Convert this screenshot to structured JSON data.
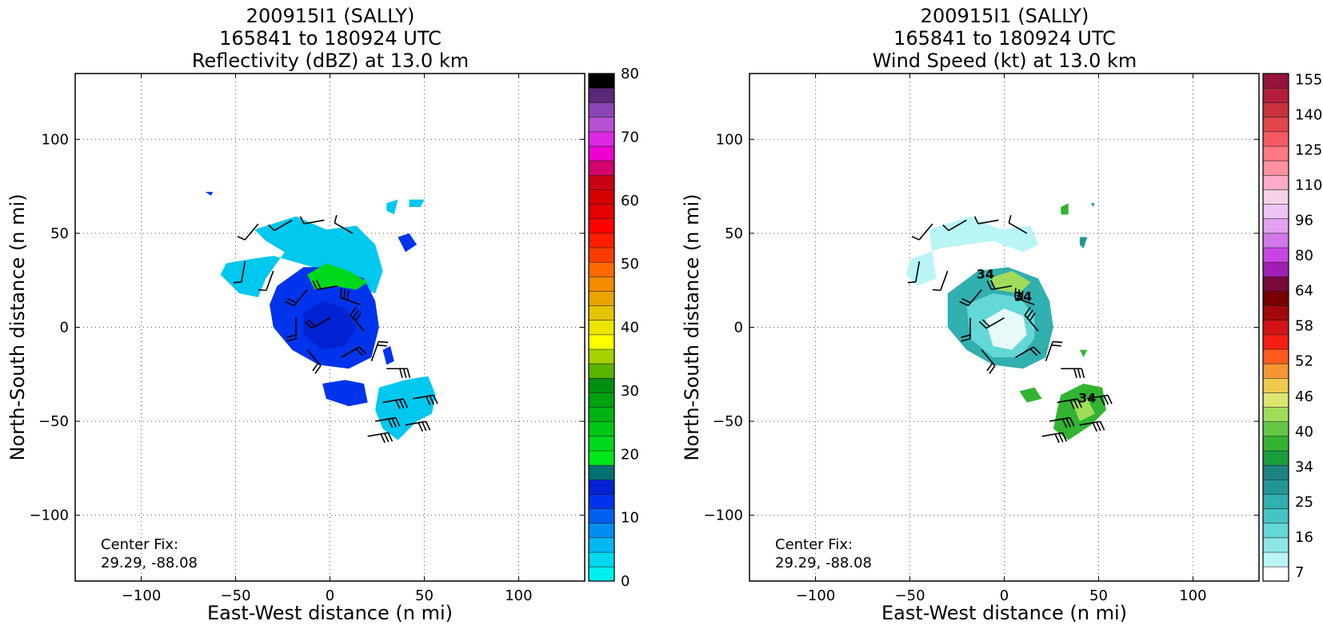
{
  "chart_data": [
    {
      "type": "heatmap",
      "title": [
        "200915I1 (SALLY)",
        "165841 to 180924 UTC",
        "Reflectivity (dBZ) at 13.0 km"
      ],
      "xlabel": "East-West distance (n mi)",
      "ylabel": "North-South distance (n mi)",
      "xlim": [
        -135,
        135
      ],
      "ylim": [
        -135,
        135
      ],
      "xticks": [
        -100,
        -50,
        0,
        50,
        100
      ],
      "yticks": [
        -100,
        -50,
        0,
        50,
        100
      ],
      "grid": true,
      "annotation": [
        "Center Fix:",
        "29.29, -88.08"
      ],
      "colorbar": {
        "min": 0,
        "max": 80,
        "ticks": [
          0,
          10,
          20,
          30,
          40,
          50,
          60,
          70,
          80
        ],
        "colors": [
          "#00efef",
          "#00d8ef",
          "#00b9f5",
          "#008ff0",
          "#0060f0",
          "#0034ec",
          "#0022d2",
          "#007070",
          "#00e71a",
          "#00d81c",
          "#00c616",
          "#00b314",
          "#00a110",
          "#008f10",
          "#5ab400",
          "#a6d000",
          "#ffff00",
          "#ece400",
          "#e6c400",
          "#eaa400",
          "#f58a00",
          "#ff6a00",
          "#ff3c00",
          "#ff1d00",
          "#ff0000",
          "#e60000",
          "#d40000",
          "#c80014",
          "#d4006c",
          "#ec00d2",
          "#dc28e6",
          "#b850d2",
          "#8c46b4",
          "#5a2878",
          "#000000"
        ]
      },
      "echo_regions": [
        {
          "points": [
            [
              -40,
              52
            ],
            [
              -18,
              59
            ],
            [
              -2,
              52
            ],
            [
              14,
              54
            ],
            [
              24,
              44
            ],
            [
              28,
              30
            ],
            [
              24,
              18
            ],
            [
              12,
              22
            ],
            [
              -2,
              30
            ],
            [
              -16,
              34
            ],
            [
              -30,
              38
            ],
            [
              -44,
              36
            ],
            [
              -55,
              34
            ],
            [
              -58,
              28
            ],
            [
              -48,
              18
            ],
            [
              -38,
              16
            ],
            [
              -34,
              26
            ],
            [
              -24,
              40
            ],
            [
              -34,
              46
            ]
          ],
          "color": "#00c8ef"
        },
        {
          "points": [
            [
              -28,
              22
            ],
            [
              -14,
              32
            ],
            [
              2,
              32
            ],
            [
              18,
              26
            ],
            [
              24,
              14
            ],
            [
              26,
              0
            ],
            [
              22,
              -16
            ],
            [
              10,
              -22
            ],
            [
              -6,
              -20
            ],
            [
              -20,
              -12
            ],
            [
              -30,
              0
            ],
            [
              -32,
              12
            ]
          ],
          "color": "#0034ec"
        },
        {
          "points": [
            [
              -12,
              28
            ],
            [
              -2,
              34
            ],
            [
              10,
              30
            ],
            [
              20,
              24
            ],
            [
              14,
              20
            ],
            [
              2,
              22
            ],
            [
              -8,
              20
            ]
          ],
          "color": "#00d81c"
        },
        {
          "points": [
            [
              -14,
              8
            ],
            [
              -4,
              14
            ],
            [
              8,
              10
            ],
            [
              14,
              0
            ],
            [
              8,
              -10
            ],
            [
              -4,
              -12
            ],
            [
              -14,
              -4
            ]
          ],
          "color": "#0022d2"
        },
        {
          "points": [
            [
              -4,
              -30
            ],
            [
              8,
              -28
            ],
            [
              18,
              -30
            ],
            [
              20,
              -40
            ],
            [
              10,
              -42
            ],
            [
              -2,
              -38
            ]
          ],
          "color": "#0034ec"
        },
        {
          "points": [
            [
              26,
              -32
            ],
            [
              40,
              -28
            ],
            [
              52,
              -26
            ],
            [
              56,
              -36
            ],
            [
              54,
              -46
            ],
            [
              46,
              -50
            ],
            [
              36,
              -60
            ],
            [
              28,
              -54
            ],
            [
              24,
              -44
            ]
          ],
          "color": "#00c8ef"
        },
        {
          "points": [
            [
              36,
              48
            ],
            [
              42,
              50
            ],
            [
              46,
              44
            ],
            [
              40,
              40
            ]
          ],
          "color": "#0034ec"
        },
        {
          "points": [
            [
              28,
              -12
            ],
            [
              32,
              -10
            ],
            [
              34,
              -18
            ],
            [
              30,
              -20
            ]
          ],
          "color": "#0034ec"
        },
        {
          "points": [
            [
              30,
              66
            ],
            [
              36,
              68
            ],
            [
              34,
              60
            ],
            [
              30,
              62
            ]
          ],
          "color": "#00c8ef"
        },
        {
          "points": [
            [
              42,
              68
            ],
            [
              50,
              68
            ],
            [
              48,
              64
            ],
            [
              42,
              64
            ]
          ],
          "color": "#00c8ef"
        },
        {
          "points": [
            [
              -66,
              72
            ],
            [
              -62,
              72
            ],
            [
              -63,
              70
            ]
          ],
          "color": "#0034ec"
        }
      ],
      "wind_barbs": [
        {
          "x": -38,
          "y": 55,
          "dir": 220,
          "flags": 0
        },
        {
          "x": -20,
          "y": 57,
          "dir": 240,
          "flags": 0
        },
        {
          "x": -3,
          "y": 57,
          "dir": 260,
          "flags": 0
        },
        {
          "x": 12,
          "y": 50,
          "dir": 300,
          "flags": 0
        },
        {
          "x": -45,
          "y": 35,
          "dir": 190,
          "flags": 0
        },
        {
          "x": -30,
          "y": 30,
          "dir": 200,
          "flags": 0
        },
        {
          "x": -12,
          "y": 20,
          "dir": 220,
          "flags": 2
        },
        {
          "x": 4,
          "y": 22,
          "dir": 260,
          "flags": 2
        },
        {
          "x": 16,
          "y": 12,
          "dir": 290,
          "flags": 3
        },
        {
          "x": -18,
          "y": 5,
          "dir": 180,
          "flags": 2
        },
        {
          "x": 0,
          "y": 5,
          "dir": 240,
          "flags": 2
        },
        {
          "x": 18,
          "y": -2,
          "dir": 320,
          "flags": 3
        },
        {
          "x": -12,
          "y": -12,
          "dir": 140,
          "flags": 2
        },
        {
          "x": 6,
          "y": -16,
          "dir": 60,
          "flags": 2
        },
        {
          "x": 22,
          "y": -18,
          "dir": 20,
          "flags": 2
        },
        {
          "x": 30,
          "y": -22,
          "dir": 90,
          "flags": 3
        },
        {
          "x": 28,
          "y": -40,
          "dir": 80,
          "flags": 3
        },
        {
          "x": 44,
          "y": -38,
          "dir": 80,
          "flags": 3
        },
        {
          "x": 24,
          "y": -50,
          "dir": 80,
          "flags": 3
        },
        {
          "x": 40,
          "y": -52,
          "dir": 80,
          "flags": 3
        },
        {
          "x": 20,
          "y": -58,
          "dir": 80,
          "flags": 3
        }
      ]
    },
    {
      "type": "heatmap",
      "title": [
        "200915I1 (SALLY)",
        "165841 to 180924 UTC",
        "Wind Speed (kt) at 13.0 km"
      ],
      "xlabel": "East-West distance (n mi)",
      "ylabel": "North-South distance (n mi)",
      "xlim": [
        -135,
        135
      ],
      "ylim": [
        -135,
        135
      ],
      "xticks": [
        -100,
        -50,
        0,
        50,
        100
      ],
      "yticks": [
        -100,
        -50,
        0,
        50,
        100
      ],
      "grid": true,
      "annotation": [
        "Center Fix:",
        "29.29, -88.08"
      ],
      "colorbar": {
        "ticks": [
          7,
          16,
          25,
          34,
          40,
          46,
          52,
          58,
          64,
          80,
          96,
          110,
          125,
          140,
          155
        ],
        "colors": [
          "#ffffff",
          "#b9f5f5",
          "#8ce6e6",
          "#64d7d7",
          "#46c3c3",
          "#32afaf",
          "#229696",
          "#1e8282",
          "#1a9e3c",
          "#32b432",
          "#64c846",
          "#a0dc5a",
          "#dce66e",
          "#f0c850",
          "#f59632",
          "#ff5a1e",
          "#f51e14",
          "#d21414",
          "#a00a0a",
          "#780000",
          "#780a3c",
          "#a01eb4",
          "#c846e6",
          "#d278eb",
          "#e1a0f0",
          "#f0c3f5",
          "#f5d2e6",
          "#ffaac8",
          "#ff91a0",
          "#ff7882",
          "#f55a64",
          "#e1464b",
          "#c8323c",
          "#b41e3c",
          "#96143c"
        ]
      },
      "echo_regions": [
        {
          "points": [
            [
              -40,
              52
            ],
            [
              -18,
              59
            ],
            [
              -2,
              52
            ],
            [
              14,
              54
            ],
            [
              18,
              44
            ],
            [
              10,
              40
            ],
            [
              -6,
              46
            ],
            [
              -20,
              44
            ],
            [
              -34,
              42
            ],
            [
              -50,
              36
            ],
            [
              -52,
              28
            ],
            [
              -46,
              22
            ],
            [
              -36,
              26
            ]
          ],
          "color": "#b9f5f5"
        },
        {
          "points": [
            [
              -30,
              18
            ],
            [
              -14,
              30
            ],
            [
              2,
              32
            ],
            [
              18,
              26
            ],
            [
              24,
              14
            ],
            [
              26,
              0
            ],
            [
              22,
              -16
            ],
            [
              10,
              -22
            ],
            [
              -6,
              -20
            ],
            [
              -20,
              -12
            ],
            [
              -30,
              0
            ]
          ],
          "color": "#32afaf"
        },
        {
          "points": [
            [
              -20,
              12
            ],
            [
              -6,
              18
            ],
            [
              8,
              16
            ],
            [
              16,
              6
            ],
            [
              16,
              -6
            ],
            [
              8,
              -16
            ],
            [
              -6,
              -16
            ],
            [
              -18,
              -6
            ]
          ],
          "color": "#64d7d7"
        },
        {
          "points": [
            [
              -10,
              4
            ],
            [
              0,
              10
            ],
            [
              10,
              6
            ],
            [
              12,
              -4
            ],
            [
              4,
              -12
            ],
            [
              -6,
              -10
            ]
          ],
          "color": "#e6fafa"
        },
        {
          "points": [
            [
              -8,
              26
            ],
            [
              4,
              30
            ],
            [
              14,
              24
            ],
            [
              8,
              18
            ],
            [
              -4,
              20
            ]
          ],
          "color": "#a0dc5a"
        },
        {
          "points": [
            [
              8,
              -34
            ],
            [
              16,
              -32
            ],
            [
              20,
              -38
            ],
            [
              12,
              -40
            ]
          ],
          "color": "#32b432"
        },
        {
          "points": [
            [
              30,
              -36
            ],
            [
              42,
              -30
            ],
            [
              52,
              -32
            ],
            [
              54,
              -44
            ],
            [
              46,
              -52
            ],
            [
              34,
              -60
            ],
            [
              26,
              -54
            ],
            [
              28,
              -44
            ]
          ],
          "color": "#32b432"
        },
        {
          "points": [
            [
              36,
              -40
            ],
            [
              44,
              -38
            ],
            [
              48,
              -46
            ],
            [
              40,
              -50
            ]
          ],
          "color": "#a0dc5a"
        },
        {
          "points": [
            [
              40,
              -12
            ],
            [
              44,
              -12
            ],
            [
              42,
              -16
            ]
          ],
          "color": "#32b432"
        },
        {
          "points": [
            [
              30,
              64
            ],
            [
              34,
              66
            ],
            [
              34,
              60
            ],
            [
              30,
              60
            ]
          ],
          "color": "#32b432"
        },
        {
          "points": [
            [
              40,
              48
            ],
            [
              44,
              48
            ],
            [
              42,
              42
            ],
            [
              40,
              44
            ]
          ],
          "color": "#229696"
        },
        {
          "points": [
            [
              46,
              66
            ],
            [
              48,
              66
            ],
            [
              47,
              64
            ]
          ],
          "color": "#229696"
        }
      ],
      "contour_labels": [
        {
          "x": -10,
          "y": 26,
          "text": "34"
        },
        {
          "x": 10,
          "y": 14,
          "text": "34"
        },
        {
          "x": 44,
          "y": -40,
          "text": "34"
        }
      ],
      "wind_barbs": [
        {
          "x": -38,
          "y": 55,
          "dir": 220,
          "flags": 0
        },
        {
          "x": -20,
          "y": 57,
          "dir": 240,
          "flags": 0
        },
        {
          "x": -3,
          "y": 57,
          "dir": 260,
          "flags": 0
        },
        {
          "x": 12,
          "y": 50,
          "dir": 300,
          "flags": 0
        },
        {
          "x": -45,
          "y": 35,
          "dir": 190,
          "flags": 0
        },
        {
          "x": -30,
          "y": 30,
          "dir": 200,
          "flags": 0
        },
        {
          "x": -12,
          "y": 20,
          "dir": 220,
          "flags": 2
        },
        {
          "x": 4,
          "y": 22,
          "dir": 260,
          "flags": 2
        },
        {
          "x": 16,
          "y": 12,
          "dir": 290,
          "flags": 3
        },
        {
          "x": -18,
          "y": 5,
          "dir": 180,
          "flags": 2
        },
        {
          "x": 0,
          "y": 5,
          "dir": 240,
          "flags": 2
        },
        {
          "x": 18,
          "y": -2,
          "dir": 320,
          "flags": 3
        },
        {
          "x": -12,
          "y": -12,
          "dir": 140,
          "flags": 2
        },
        {
          "x": 6,
          "y": -16,
          "dir": 60,
          "flags": 2
        },
        {
          "x": 22,
          "y": -18,
          "dir": 20,
          "flags": 2
        },
        {
          "x": 30,
          "y": -22,
          "dir": 90,
          "flags": 3
        },
        {
          "x": 28,
          "y": -40,
          "dir": 80,
          "flags": 3
        },
        {
          "x": 44,
          "y": -38,
          "dir": 80,
          "flags": 3
        },
        {
          "x": 24,
          "y": -50,
          "dir": 80,
          "flags": 3
        },
        {
          "x": 40,
          "y": -52,
          "dir": 80,
          "flags": 3
        },
        {
          "x": 20,
          "y": -58,
          "dir": 80,
          "flags": 3
        }
      ]
    }
  ]
}
